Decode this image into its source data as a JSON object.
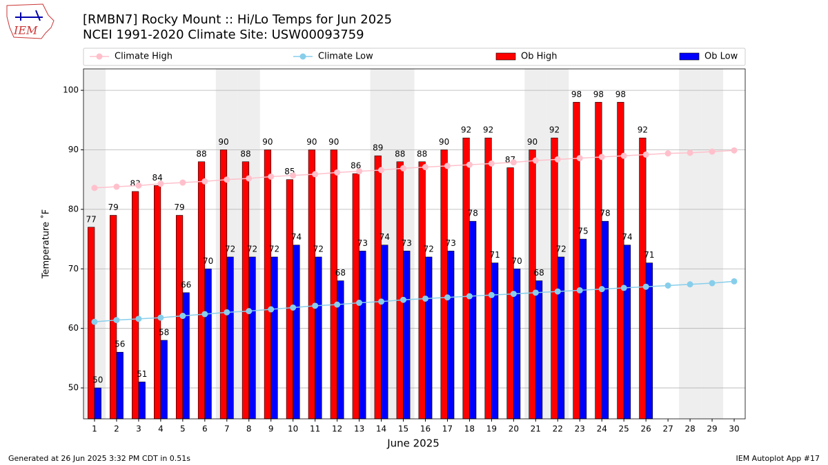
{
  "logo_text": "IEM",
  "chart_data": {
    "type": "bar-line",
    "title": "[RMBN7] Rocky Mount :: Hi/Lo Temps for Jun 2025",
    "subtitle": "NCEI 1991-2020 Climate Site: USW00093759",
    "x_label": "June 2025",
    "y_label": "Temperature ˚F",
    "footer_left": "Generated at 26 Jun 2025 3:32 PM CDT in 0.51s",
    "footer_right": "IEM Autoplot App #17",
    "x": [
      1,
      2,
      3,
      4,
      5,
      6,
      7,
      8,
      9,
      10,
      11,
      12,
      13,
      14,
      15,
      16,
      17,
      18,
      19,
      20,
      21,
      22,
      23,
      24,
      25,
      26,
      27,
      28,
      29,
      30
    ],
    "xlim": [
      0.5,
      30.5
    ],
    "xticks": [
      1,
      2,
      3,
      4,
      5,
      6,
      7,
      8,
      9,
      10,
      11,
      12,
      13,
      14,
      15,
      16,
      17,
      18,
      19,
      20,
      21,
      22,
      23,
      24,
      25,
      26,
      27,
      28,
      29,
      30
    ],
    "ylim": [
      44.8,
      103.6
    ],
    "yticks": [
      50,
      60,
      70,
      80,
      90,
      100
    ],
    "grid": true,
    "highlight_days": [
      1,
      7,
      8,
      14,
      15,
      21,
      22,
      28,
      29
    ],
    "highlight_color": "#eeeeee",
    "series": [
      {
        "name": "Climate High",
        "kind": "line",
        "color": "#ffc0cb",
        "values": [
          83.6,
          83.8,
          84.0,
          84.3,
          84.5,
          84.7,
          85.0,
          85.2,
          85.5,
          85.7,
          85.9,
          86.2,
          86.4,
          86.6,
          86.9,
          87.1,
          87.3,
          87.5,
          87.7,
          87.9,
          88.2,
          88.4,
          88.6,
          88.8,
          89.0,
          89.2,
          89.4,
          89.5,
          89.7,
          89.9
        ]
      },
      {
        "name": "Climate Low",
        "kind": "line",
        "color": "#87ceeb",
        "values": [
          61.1,
          61.4,
          61.6,
          61.8,
          62.1,
          62.4,
          62.7,
          62.9,
          63.2,
          63.5,
          63.8,
          64.0,
          64.3,
          64.5,
          64.8,
          65.0,
          65.2,
          65.4,
          65.6,
          65.8,
          66.0,
          66.2,
          66.4,
          66.6,
          66.8,
          67.0,
          67.2,
          67.4,
          67.6,
          67.9
        ]
      },
      {
        "name": "Ob High",
        "kind": "bar",
        "color": "#ff0000",
        "values": [
          77,
          79,
          83,
          84,
          79,
          88,
          90,
          88,
          90,
          85,
          90,
          90,
          86,
          89,
          88,
          88,
          90,
          92,
          92,
          87,
          90,
          92,
          98,
          98,
          98,
          92,
          null,
          null,
          null,
          null
        ]
      },
      {
        "name": "Ob Low",
        "kind": "bar",
        "color": "#0000ff",
        "values": [
          50,
          56,
          51,
          58,
          66,
          70,
          72,
          72,
          72,
          74,
          72,
          68,
          73,
          74,
          73,
          72,
          73,
          78,
          71,
          70,
          68,
          72,
          75,
          78,
          74,
          71,
          null,
          null,
          null,
          null
        ]
      }
    ]
  }
}
